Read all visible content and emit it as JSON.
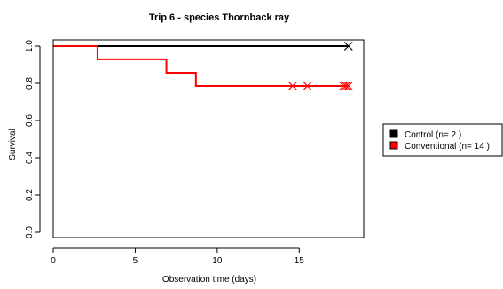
{
  "chart_data": {
    "type": "line",
    "subtype": "kaplan-meier-step",
    "title": "Trip  6 - species  Thornback ray",
    "xlabel": "Observation time (days)",
    "ylabel": "Survival",
    "xlim": [
      0,
      18.5
    ],
    "ylim": [
      0,
      1
    ],
    "xticks": [
      0,
      5,
      10,
      15
    ],
    "yticks": [
      0.0,
      0.2,
      0.4,
      0.6,
      0.8,
      1.0
    ],
    "xtick_labels": [
      "0",
      "5",
      "10",
      "15"
    ],
    "ytick_labels": [
      "0.0",
      "0.2",
      "0.4",
      "0.6",
      "0.8",
      "1.0"
    ],
    "grid": false,
    "legend_position": "right",
    "series": [
      {
        "name": "Control (n= 2 )",
        "color": "#000000",
        "steps": [
          [
            0,
            1.0
          ],
          [
            18,
            1.0
          ]
        ],
        "censored": [
          [
            18,
            1.0
          ]
        ]
      },
      {
        "name": "Conventional (n= 14 )",
        "color": "#ff0000",
        "steps": [
          [
            0,
            1.0
          ],
          [
            2.7,
            0.929
          ],
          [
            6.9,
            0.857
          ],
          [
            8.7,
            0.786
          ],
          [
            18,
            0.786
          ]
        ],
        "censored": [
          [
            14.6,
            0.786
          ],
          [
            15.5,
            0.786
          ],
          [
            17.7,
            0.786
          ],
          [
            17.85,
            0.786
          ],
          [
            18,
            0.786
          ]
        ]
      }
    ]
  }
}
